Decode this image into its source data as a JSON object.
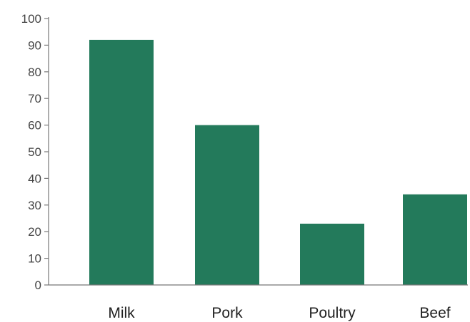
{
  "chart_data": {
    "type": "bar",
    "title": "",
    "xlabel": "",
    "ylabel": "",
    "categories": [
      "Milk",
      "Pork",
      "Poultry",
      "Beef"
    ],
    "values": [
      92,
      60,
      23,
      34
    ],
    "ylim": [
      0,
      100
    ],
    "yticks": [
      0,
      10,
      20,
      30,
      40,
      50,
      60,
      70,
      80,
      90,
      100
    ],
    "grid": false,
    "legend": "none",
    "bar_color": "#237a5b",
    "axis_color": "#777777"
  }
}
